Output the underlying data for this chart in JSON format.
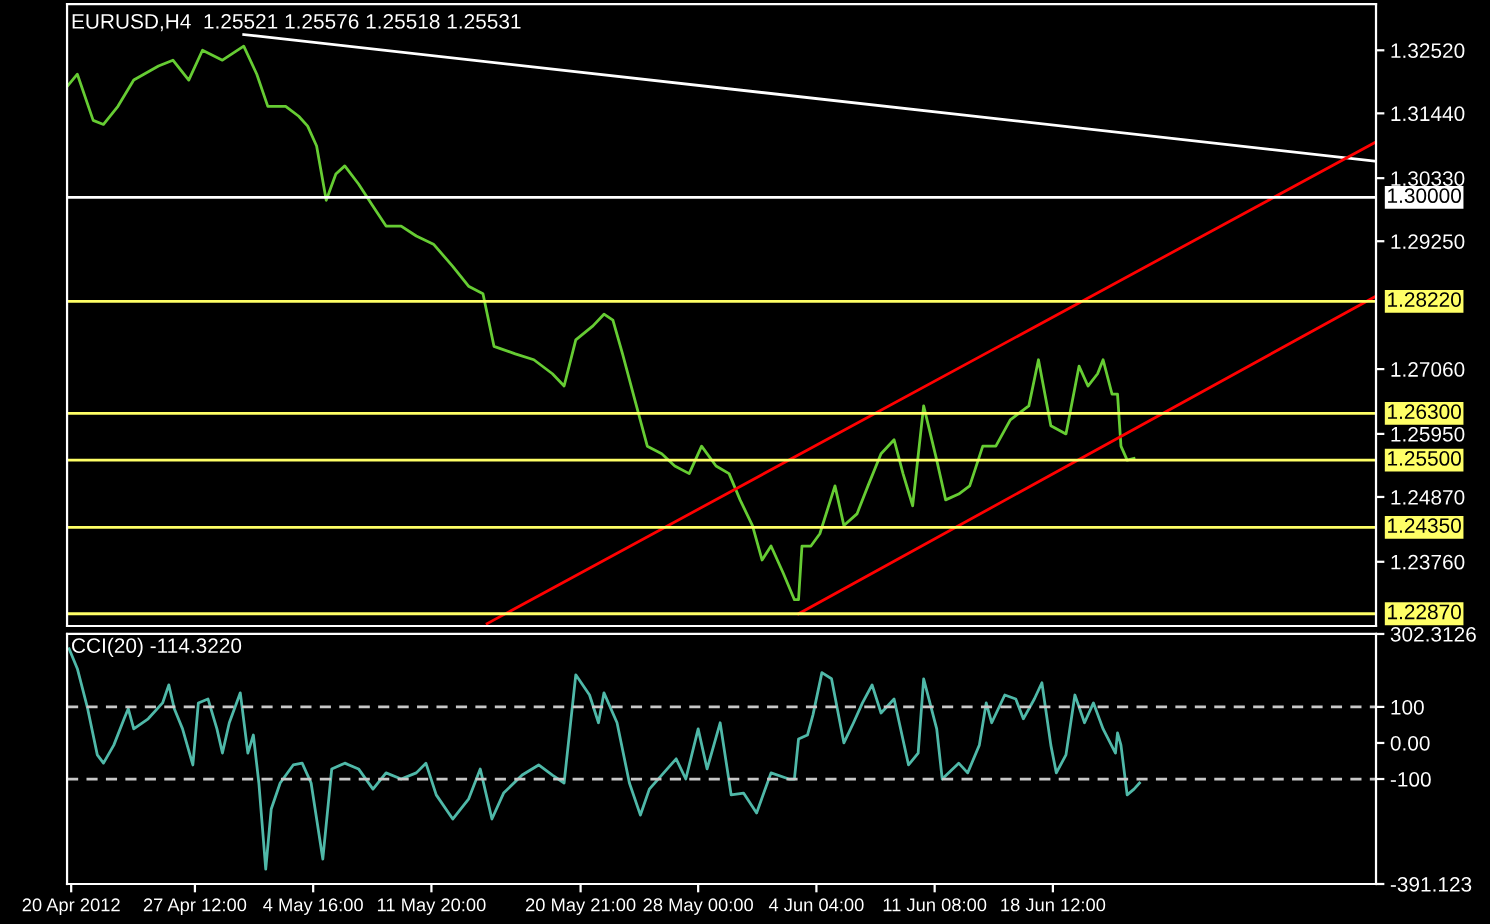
{
  "chart_data": [
    {
      "type": "line",
      "title": "EURUSD,H4  1.25521 1.25576 1.25518 1.25531",
      "xlim": [
        "2012-04-19T18:00",
        "2012-07-08T02:00"
      ],
      "ylim": [
        1.2266,
        1.3331
      ],
      "yticks": [
        {
          "value": 1.3252,
          "label": "1.32520"
        },
        {
          "value": 1.3144,
          "label": "1.31440"
        },
        {
          "value": 1.3033,
          "label": "1.30330"
        },
        {
          "value": 1.2925,
          "label": "1.29250"
        },
        {
          "value": 1.2706,
          "label": "1.27060"
        },
        {
          "value": 1.2595,
          "label": "1.25950"
        },
        {
          "value": 1.2487,
          "label": "1.24870"
        },
        {
          "value": 1.2376,
          "label": "1.23760"
        }
      ],
      "tick_labels": "y",
      "ref_lines": [
        {
          "axis": "y",
          "value": 1.3,
          "label": "1.30000",
          "color": "#ffffff",
          "line_style": "solid"
        },
        {
          "axis": "y",
          "value": 1.2822,
          "label": "1.28220",
          "color": "#ffff66",
          "line_style": "solid"
        },
        {
          "axis": "y",
          "value": 1.263,
          "label": "1.26300",
          "color": "#ffff66",
          "line_style": "solid"
        },
        {
          "axis": "y",
          "value": 1.255,
          "label": "1.25500",
          "color": "#ffff66",
          "line_style": "solid"
        },
        {
          "axis": "y",
          "value": 1.2435,
          "label": "1.24350",
          "color": "#ffff66",
          "line_style": "solid"
        },
        {
          "axis": "y",
          "value": 1.2287,
          "label": "1.22870",
          "color": "#ffff66",
          "line_style": "solid"
        }
      ],
      "series": [
        {
          "color": "#66cc33",
          "x": [
            "2012-04-19T18:00",
            "2012-04-20T09:00",
            "2012-04-21T08:00",
            "2012-04-21T23:00",
            "2012-04-22T20:00",
            "2012-04-23T19:00",
            "2012-04-25T07:00",
            "2012-04-26T04:00",
            "2012-04-27T03:00",
            "2012-04-27T23:00",
            "2012-04-29T04:00",
            "2012-04-30T11:00",
            "2012-05-01T06:00",
            "2012-05-01T22:00",
            "2012-05-03T00:00",
            "2012-05-03T19:00",
            "2012-05-04T08:00",
            "2012-05-04T21:00",
            "2012-05-05T11:00",
            "2012-05-06T01:00",
            "2012-05-06T14:00",
            "2012-05-07T10:00",
            "2012-05-08T07:00",
            "2012-05-09T02:00",
            "2012-05-10T00:00",
            "2012-05-10T22:00",
            "2012-05-11T23:00",
            "2012-05-13T03:00",
            "2012-05-14T02:00",
            "2012-05-14T23:00",
            "2012-05-15T15:00",
            "2012-05-16T22:00",
            "2012-05-18T01:00",
            "2012-05-19T04:00",
            "2012-05-19T21:00",
            "2012-05-20T14:00",
            "2012-05-21T15:00",
            "2012-05-22T07:00",
            "2012-05-22T20:00",
            "2012-05-23T10:00",
            "2012-05-24T04:00",
            "2012-05-24T22:00",
            "2012-05-25T19:00",
            "2012-05-26T14:00",
            "2012-05-27T11:00",
            "2012-05-28T05:00",
            "2012-05-29T02:00",
            "2012-05-29T21:00",
            "2012-05-30T13:00",
            "2012-05-31T07:00",
            "2012-05-31T21:00",
            "2012-06-01T10:00",
            "2012-06-02T04:00",
            "2012-06-02T20:00",
            "2012-06-03T02:00",
            "2012-06-03T07:00",
            "2012-06-03T20:00",
            "2012-06-04T09:00",
            "2012-06-05T07:00",
            "2012-06-05T20:00",
            "2012-06-06T15:00",
            "2012-06-07T07:00",
            "2012-06-08T02:00",
            "2012-06-08T21:00",
            "2012-06-09T10:00",
            "2012-06-10T00:00",
            "2012-06-10T16:00",
            "2012-06-11T11:00",
            "2012-06-12T00:00",
            "2012-06-12T19:00",
            "2012-06-13T11:00",
            "2012-06-14T06:00",
            "2012-06-15T01:00",
            "2012-06-15T22:00",
            "2012-06-17T01:00",
            "2012-06-17T15:00",
            "2012-06-18T09:00",
            "2012-06-19T07:00",
            "2012-06-20T02:00",
            "2012-06-20T15:00",
            "2012-06-21T05:00",
            "2012-06-21T13:00",
            "2012-06-22T02:00",
            "2012-06-22T10:00",
            "2012-06-22T15:00",
            "2012-06-23T00:00",
            "2012-06-23T10:00"
          ],
          "values": [
            1.319,
            1.3211,
            1.3132,
            1.3125,
            1.3156,
            1.3201,
            1.3225,
            1.3235,
            1.3201,
            1.3252,
            1.3235,
            1.3259,
            1.3211,
            1.3156,
            1.3156,
            1.3139,
            1.3122,
            1.3088,
            1.2995,
            1.304,
            1.3054,
            1.3023,
            1.2985,
            1.2951,
            1.2951,
            1.2934,
            1.292,
            1.2882,
            1.2848,
            1.2835,
            1.2745,
            1.2732,
            1.2722,
            1.2698,
            1.2677,
            1.2756,
            1.278,
            1.28,
            1.279,
            1.2732,
            1.2653,
            1.2574,
            1.2561,
            1.254,
            1.2527,
            1.2574,
            1.254,
            1.2527,
            1.2482,
            1.2438,
            1.2379,
            1.2403,
            1.2356,
            1.2311,
            1.2311,
            1.2403,
            1.2403,
            1.2424,
            1.2506,
            1.2438,
            1.2458,
            1.2506,
            1.2561,
            1.2585,
            1.2527,
            1.2472,
            1.2643,
            1.255,
            1.2482,
            1.2492,
            1.2506,
            1.2574,
            1.2574,
            1.2619,
            1.2643,
            1.2722,
            1.2609,
            1.2595,
            1.2711,
            1.2677,
            1.2698,
            1.2722,
            1.2663,
            1.2663,
            1.2574,
            1.255,
            1.2553
          ]
        },
        {
          "color": "#ffffff",
          "x": [
            "2012-04-30T11:00",
            "2012-07-08T02:00"
          ],
          "values": [
            1.3279,
            1.3062
          ]
        },
        {
          "color": "#ff0000",
          "x": [
            "2012-05-15T05:00",
            "2012-07-08T02:00"
          ],
          "values": [
            1.227,
            1.3095
          ]
        },
        {
          "color": "#ff0000",
          "x": [
            "2012-06-03T02:00",
            "2012-07-08T02:00"
          ],
          "values": [
            1.2287,
            1.2831
          ]
        }
      ]
    },
    {
      "type": "line",
      "title": "CCI(20) -114.3220",
      "xlim": [
        "2012-04-19T18:00",
        "2012-07-08T02:00"
      ],
      "xticks": [
        {
          "value": "2012-04-20T00:00",
          "label": "20 Apr 2012"
        },
        {
          "value": "2012-04-27T12:00",
          "label": "27 Apr 12:00"
        },
        {
          "value": "2012-05-04T16:00",
          "label": "4 May 16:00"
        },
        {
          "value": "2012-05-11T20:00",
          "label": "11 May 20:00"
        },
        {
          "value": "2012-05-20T21:00",
          "label": "20 May 21:00"
        },
        {
          "value": "2012-05-28T00:00",
          "label": "28 May 00:00"
        },
        {
          "value": "2012-06-04T04:00",
          "label": "4 Jun 04:00"
        },
        {
          "value": "2012-06-11T08:00",
          "label": "11 Jun 08:00"
        },
        {
          "value": "2012-06-18T12:00",
          "label": "18 Jun 12:00"
        }
      ],
      "ylim": [
        -391.123,
        302.3126
      ],
      "yticks": [
        {
          "value": 302.3126,
          "label": "302.3126"
        },
        100,
        {
          "value": 0,
          "label": "0.00"
        },
        -100,
        {
          "value": -391.123,
          "label": "-391.123"
        }
      ],
      "ref_lines": [
        {
          "axis": "y",
          "value": 100,
          "color": "#c8c8c8",
          "line_style": "dashed"
        },
        {
          "axis": "y",
          "value": -100,
          "color": "#c8c8c8",
          "line_style": "dashed"
        }
      ],
      "series": [
        {
          "color": "#4fb8a8",
          "x": [
            "2012-04-19T21:00",
            "2012-04-20T09:00",
            "2012-04-21T00:00",
            "2012-04-21T14:00",
            "2012-04-21T23:00",
            "2012-04-22T14:00",
            "2012-04-23T05:00",
            "2012-04-23T11:00",
            "2012-04-23T19:00",
            "2012-04-24T16:00",
            "2012-04-25T13:00",
            "2012-04-25T22:00",
            "2012-04-26T06:00",
            "2012-04-26T18:00",
            "2012-04-27T09:00",
            "2012-04-27T17:00",
            "2012-04-28T07:00",
            "2012-04-28T20:00",
            "2012-04-29T04:00",
            "2012-04-29T14:00",
            "2012-04-30T06:00",
            "2012-04-30T17:00",
            "2012-05-01T01:00",
            "2012-05-01T09:00",
            "2012-05-01T19:00",
            "2012-05-02T03:00",
            "2012-05-02T16:00",
            "2012-05-03T11:00",
            "2012-05-04T00:00",
            "2012-05-04T13:00",
            "2012-05-05T06:00",
            "2012-05-05T19:00",
            "2012-05-06T14:00",
            "2012-05-07T10:00",
            "2012-05-08T07:00",
            "2012-05-09T02:00",
            "2012-05-10T00:00",
            "2012-05-10T22:00",
            "2012-05-11T12:00",
            "2012-05-12T03:00",
            "2012-05-13T03:00",
            "2012-05-14T02:00",
            "2012-05-14T19:00",
            "2012-05-15T12:00",
            "2012-05-16T05:00",
            "2012-05-17T08:00",
            "2012-05-18T08:00",
            "2012-05-19T04:00",
            "2012-05-19T21:00",
            "2012-05-20T14:00",
            "2012-05-21T10:00",
            "2012-05-21T23:00",
            "2012-05-22T07:00",
            "2012-05-23T02:00",
            "2012-05-23T20:00",
            "2012-05-24T12:00",
            "2012-05-25T01:00",
            "2012-05-25T19:00",
            "2012-05-26T16:00",
            "2012-05-27T06:00",
            "2012-05-28T00:00",
            "2012-05-28T13:00",
            "2012-05-29T08:00",
            "2012-05-30T00:00",
            "2012-05-30T18:00",
            "2012-05-31T13:00",
            "2012-06-01T10:00",
            "2012-06-02T12:00",
            "2012-06-02T20:00",
            "2012-06-03T02:00",
            "2012-06-03T15:00",
            "2012-06-03T23:00",
            "2012-06-04T12:00",
            "2012-06-05T02:00",
            "2012-06-05T20:00",
            "2012-06-06T10:00",
            "2012-06-06T23:00",
            "2012-06-07T13:00",
            "2012-06-08T02:00",
            "2012-06-08T21:00",
            "2012-06-09T18:00",
            "2012-06-10T08:00",
            "2012-06-10T16:00",
            "2012-06-11T11:00",
            "2012-06-11T19:00",
            "2012-06-12T19:00",
            "2012-06-13T08:00",
            "2012-06-14T01:00",
            "2012-06-14T11:00",
            "2012-06-14T19:00",
            "2012-06-15T14:00",
            "2012-06-16T06:00",
            "2012-06-16T17:00",
            "2012-06-17T09:00",
            "2012-06-17T20:00",
            "2012-06-18T09:00",
            "2012-06-18T17:00",
            "2012-06-19T07:00",
            "2012-06-19T20:00",
            "2012-06-20T10:00",
            "2012-06-20T23:00",
            "2012-06-21T13:00",
            "2012-06-22T07:00",
            "2012-06-22T10:00",
            "2012-06-22T15:00",
            "2012-06-23T00:00",
            "2012-06-23T10:00",
            "2012-06-23T18:00"
          ],
          "values": [
            261,
            206,
            95,
            -33,
            -56,
            -6,
            67,
            95,
            39,
            67,
            111,
            161,
            95,
            39,
            -61,
            111,
            122,
            39,
            -28,
            56,
            139,
            -28,
            22,
            -111,
            -350,
            -183,
            -111,
            -61,
            -56,
            -111,
            -322,
            -72,
            -56,
            -72,
            -128,
            -83,
            -100,
            -83,
            -56,
            -144,
            -211,
            -156,
            -72,
            -211,
            -139,
            -89,
            -61,
            -89,
            -111,
            189,
            133,
            56,
            139,
            56,
            -111,
            -200,
            -128,
            -89,
            -44,
            -100,
            39,
            -72,
            56,
            -144,
            -139,
            -194,
            -83,
            -100,
            -100,
            11,
            22,
            78,
            195,
            178,
            0,
            56,
            111,
            161,
            83,
            122,
            -61,
            -28,
            178,
            39,
            -100,
            -56,
            -83,
            -6,
            111,
            56,
            133,
            122,
            67,
            122,
            167,
            -6,
            -83,
            -33,
            133,
            56,
            111,
            39,
            -28,
            28,
            -6,
            -144,
            -128,
            -111
          ]
        }
      ]
    }
  ]
}
